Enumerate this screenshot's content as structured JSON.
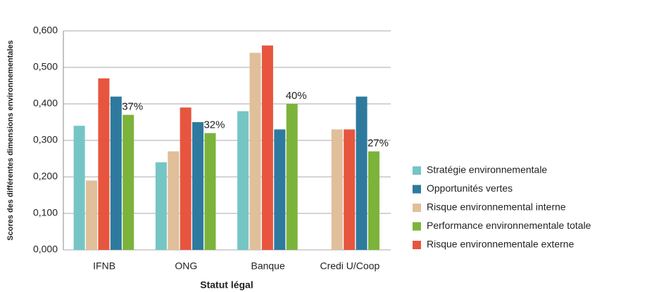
{
  "chart_data": {
    "type": "bar",
    "y_label": "Scores des différentes dimensions environnementales",
    "x_label": "Statut légal",
    "categories": [
      "IFNB",
      "ONG",
      "Banque",
      "Credi U/Coop"
    ],
    "series": [
      {
        "name": "Stratégie environnementale",
        "color": "#76c5c5",
        "values": [
          0.34,
          0.24,
          0.38,
          null
        ]
      },
      {
        "name": "Risque environnemental interne",
        "color": "#e0bf9a",
        "values": [
          0.19,
          0.27,
          0.54,
          0.33
        ]
      },
      {
        "name": "Risque environnementale externe",
        "color": "#e8553f",
        "values": [
          0.47,
          0.39,
          0.56,
          0.33
        ]
      },
      {
        "name": "Opportunités vertes",
        "color": "#2e7a9e",
        "values": [
          0.42,
          0.35,
          0.33,
          0.42
        ]
      },
      {
        "name": "Performance environnementale totale",
        "color": "#7cb33b",
        "values": [
          0.37,
          0.32,
          0.4,
          0.27
        ],
        "value_labels": [
          "37%",
          "32%",
          "40%",
          "27%"
        ]
      }
    ],
    "legend_order": [
      0,
      3,
      1,
      4,
      2
    ],
    "legend": "right",
    "ylim": [
      0,
      0.6
    ],
    "yticks": [
      {
        "value": 0,
        "label": "0,000"
      },
      {
        "value": 0.1,
        "label": "0,100"
      },
      {
        "value": 0.2,
        "label": "0,200"
      },
      {
        "value": 0.3,
        "label": "0,300"
      },
      {
        "value": 0.4,
        "label": "0,400"
      },
      {
        "value": 0.5,
        "label": "0,500"
      },
      {
        "value": 0.6,
        "label": "0,600"
      }
    ],
    "grid": true
  }
}
